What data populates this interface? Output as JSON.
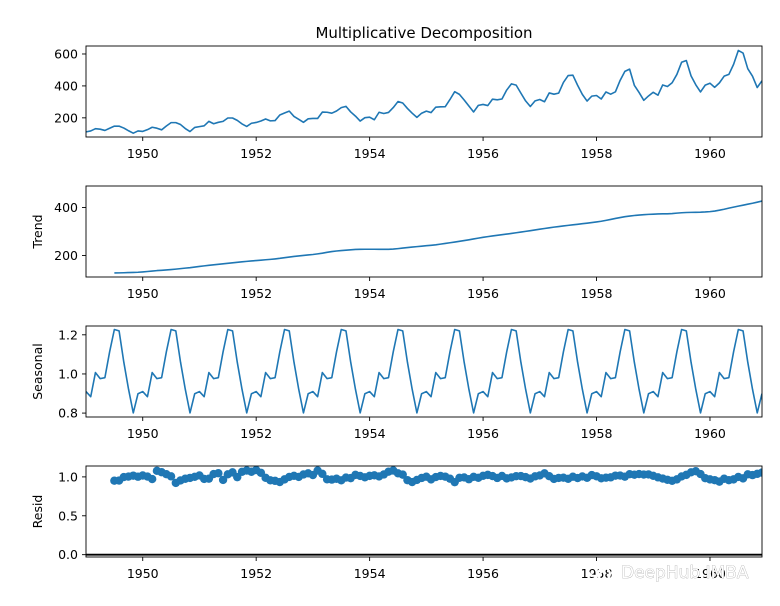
{
  "watermark": "DeepHub IMBA",
  "chart_data": [
    {
      "type": "line",
      "title": "Multiplicative Decomposition",
      "ylabel": "",
      "xlim": [
        1949.0,
        1960.917
      ],
      "ylim": [
        80,
        650
      ],
      "yticks": [
        200,
        400,
        600
      ],
      "xticks": [
        1950,
        1952,
        1954,
        1956,
        1958,
        1960
      ],
      "color": "#1f77b4",
      "x_start": 1949.0,
      "x_step": 0.08333,
      "values": [
        112,
        118,
        132,
        129,
        121,
        135,
        148,
        148,
        136,
        119,
        104,
        118,
        115,
        126,
        141,
        135,
        125,
        149,
        170,
        170,
        158,
        133,
        114,
        140,
        145,
        150,
        178,
        163,
        172,
        178,
        199,
        199,
        184,
        162,
        146,
        166,
        171,
        180,
        193,
        181,
        183,
        218,
        230,
        242,
        209,
        191,
        172,
        194,
        196,
        196,
        236,
        235,
        229,
        243,
        264,
        272,
        237,
        211,
        180,
        201,
        204,
        188,
        235,
        227,
        234,
        264,
        302,
        293,
        259,
        229,
        203,
        229,
        242,
        233,
        267,
        269,
        270,
        315,
        364,
        347,
        312,
        274,
        237,
        278,
        284,
        277,
        317,
        313,
        318,
        374,
        413,
        405,
        355,
        306,
        271,
        306,
        315,
        301,
        356,
        348,
        355,
        422,
        465,
        467,
        404,
        347,
        305,
        336,
        340,
        318,
        362,
        348,
        363,
        435,
        491,
        505,
        404,
        359,
        310,
        337,
        360,
        342,
        406,
        396,
        420,
        472,
        548,
        559,
        463,
        407,
        362,
        405,
        417,
        391,
        419,
        461,
        472,
        535,
        622,
        606,
        508,
        461,
        390,
        432
      ]
    },
    {
      "type": "line",
      "ylabel": "Trend",
      "xlim": [
        1949.0,
        1960.917
      ],
      "ylim": [
        110,
        490
      ],
      "yticks": [
        200,
        400
      ],
      "xticks": [
        1950,
        1952,
        1954,
        1956,
        1958,
        1960
      ],
      "color": "#1f77b4",
      "x_start": 1949.5,
      "x_step": 0.08333,
      "values": [
        126.8,
        127.2,
        127.8,
        128.6,
        129.0,
        129.8,
        131.3,
        133.0,
        134.9,
        136.7,
        138.0,
        139.3,
        140.9,
        142.9,
        145.0,
        147.0,
        149.0,
        151.5,
        154.0,
        156.5,
        158.9,
        161.0,
        163.0,
        165.0,
        167.1,
        169.2,
        171.3,
        173.3,
        175.2,
        177.0,
        178.7,
        180.3,
        182.0,
        183.6,
        185.6,
        187.9,
        190.7,
        193.4,
        196.0,
        198.0,
        200.0,
        202.0,
        204.0,
        206.6,
        209.5,
        213.0,
        216.2,
        218.6,
        220.5,
        222.0,
        223.5,
        224.9,
        225.7,
        225.9,
        225.9,
        225.9,
        225.8,
        225.5,
        225.7,
        226.6,
        228.5,
        230.8,
        233.0,
        235.0,
        236.9,
        238.8,
        240.6,
        242.4,
        244.6,
        247.2,
        250.0,
        253.0,
        256.0,
        259.0,
        262.0,
        265.4,
        268.8,
        272.3,
        275.6,
        278.6,
        281.4,
        284.0,
        286.6,
        289.2,
        292.0,
        294.8,
        297.6,
        300.5,
        303.5,
        306.6,
        309.6,
        312.6,
        315.5,
        318.2,
        320.8,
        323.2,
        325.6,
        327.9,
        330.2,
        332.5,
        334.8,
        337.2,
        339.8,
        342.8,
        346.5,
        350.5,
        354.5,
        358.3,
        361.7,
        364.4,
        366.8,
        368.7,
        370.2,
        371.5,
        372.5,
        373.2,
        373.7,
        374.0,
        375.0,
        376.7,
        378.3,
        379.4,
        379.9,
        380.0,
        380.5,
        381.5,
        383.0,
        385.5,
        389.0,
        393.0,
        397.5,
        401.7,
        406.0,
        410.0,
        414.0,
        418.0,
        422.5,
        427.0,
        431.0,
        434.0,
        437.0,
        440.5,
        444.5,
        449.0,
        453.5,
        458.0,
        462.0,
        465.5,
        468.5,
        471.0,
        473.0,
        474.5,
        475.5
      ]
    },
    {
      "type": "line",
      "ylabel": "Seasonal",
      "xlim": [
        1949.0,
        1960.917
      ],
      "ylim": [
        0.78,
        1.245
      ],
      "yticks": [
        0.8,
        1.0,
        1.2
      ],
      "ytick_labels": [
        "0.8",
        "1.0",
        "1.2"
      ],
      "xticks": [
        1950,
        1952,
        1954,
        1956,
        1958,
        1960
      ],
      "color": "#1f77b4",
      "x_start": 1949.0,
      "x_step": 0.08333,
      "season_values": [
        0.91,
        0.884,
        1.007,
        0.976,
        0.981,
        1.113,
        1.227,
        1.22,
        1.06,
        0.922,
        0.801,
        0.899
      ]
    },
    {
      "type": "scatter",
      "ylabel": "Resid",
      "xlim": [
        1949.0,
        1960.917
      ],
      "ylim": [
        -0.03,
        1.14
      ],
      "yticks": [
        0.0,
        0.5,
        1.0
      ],
      "ytick_labels": [
        "0.0",
        "0.5",
        "1.0"
      ],
      "xticks": [
        1950,
        1952,
        1954,
        1956,
        1958,
        1960
      ],
      "xtick_labels": [
        "1950",
        "1952",
        "1954",
        "1956",
        "1958",
        "1960"
      ],
      "baseline": 0.0,
      "color": "#1f77b4",
      "x_start": 1949.5,
      "x_step": 0.08333,
      "values": [
        0.951,
        0.953,
        0.998,
        1.004,
        1.016,
        1.002,
        1.018,
        1.004,
        0.972,
        1.078,
        1.06,
        1.035,
        1.007,
        0.922,
        0.955,
        0.976,
        0.987,
        1.001,
        1.019,
        0.974,
        0.977,
        1.036,
        1.047,
        0.961,
        1.033,
        1.058,
        0.997,
        1.065,
        1.082,
        1.066,
        1.088,
        1.053,
        0.988,
        0.956,
        0.949,
        0.934,
        0.968,
        0.999,
        1.014,
        1.0,
        1.031,
        1.046,
        1.024,
        1.081,
        1.039,
        0.969,
        0.965,
        0.976,
        0.956,
        0.991,
        0.984,
        1.026,
        1.012,
        0.995,
        1.013,
        1.02,
        1.006,
        1.031,
        1.067,
        1.082,
        1.046,
        1.029,
        0.958,
        0.934,
        0.961,
        0.986,
        1.002,
        0.968,
        0.998,
        1.012,
        1.003,
        0.977,
        0.932,
        0.988,
        0.993,
        0.97,
        1.001,
        0.988,
        1.014,
        1.026,
        1.011,
        0.986,
        1.012,
        0.981,
        0.993,
        1.009,
        1.011,
        0.997,
        0.979,
        1.007,
        1.019,
        1.046,
        1.009,
        0.974,
        0.987,
        0.99,
        0.975,
        1.002,
        0.985,
        1.006,
        0.988,
        1.023,
        1.008,
        0.982,
        0.99,
        0.994,
        1.016,
        1.017,
        1.003,
        1.035,
        1.028,
        1.036,
        1.03,
        1.032,
        1.014,
        0.994,
        0.979,
        0.963,
        0.95,
        0.968,
        1.006,
        1.026,
        1.059,
        1.073,
        1.036,
        0.983,
        0.968,
        0.958,
        0.939,
        0.976,
        0.958,
        0.968,
        0.999,
        0.981,
        1.033,
        1.023,
        1.039,
        1.055,
        1.048,
        1.013,
        0.987,
        1.01,
        0.999,
        1.006,
        0.976,
        0.942,
        0.9,
        1.013,
        1.024,
        1.015,
        1.011
      ]
    }
  ]
}
